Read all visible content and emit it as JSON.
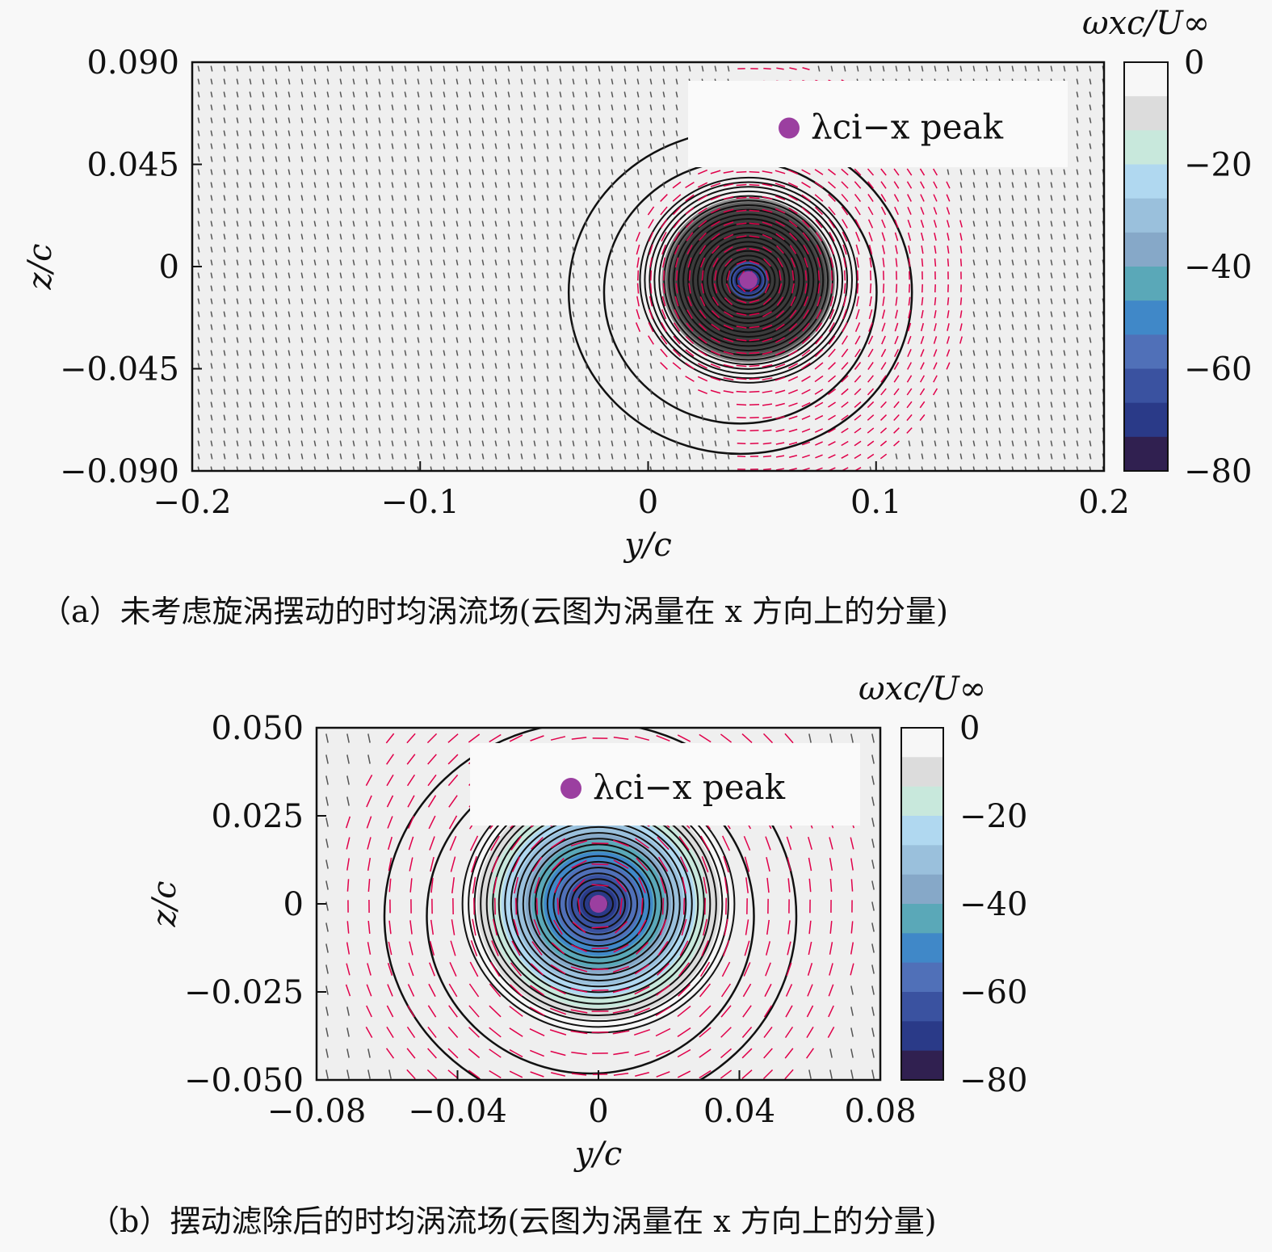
{
  "chart_data": [
    {
      "type": "heatmap",
      "subtype": "contour+quiver",
      "caption": "（a）未考虑旋涡摆动的时均涡流场(云图为涡量在 x 方向上的分量)",
      "xlabel": "y/c",
      "ylabel": "z/c",
      "xlim": [
        -0.2,
        0.2
      ],
      "ylim": [
        -0.09,
        0.09
      ],
      "xticks": [
        -0.2,
        -0.1,
        0,
        0.1,
        0.2
      ],
      "xtick_labels": [
        "−0.2",
        "−0.1",
        "0",
        "0.1",
        "0.2"
      ],
      "yticks": [
        0.09,
        0.045,
        0,
        -0.045,
        -0.09
      ],
      "ytick_labels": [
        "0.090",
        "0.045",
        "0",
        "−0.045",
        "−0.090"
      ],
      "colorbar": {
        "label": "ωxc/U∞",
        "range": [
          -80,
          0
        ],
        "ticks": [
          0,
          -20,
          -40,
          -60,
          -80
        ],
        "tick_labels": [
          "0",
          "−20",
          "−40",
          "−60",
          "−80"
        ]
      },
      "peak": {
        "y": 0.044,
        "z": -0.006,
        "min_value": -80
      },
      "legend": {
        "entry": "λci−x peak",
        "color": "#9b3fa0",
        "placement": "top-right"
      }
    },
    {
      "type": "heatmap",
      "subtype": "contour+quiver",
      "caption": "（b）摆动滤除后的时均涡流场(云图为涡量在 x 方向上的分量)",
      "xlabel": "y/c",
      "ylabel": "z/c",
      "xlim": [
        -0.08,
        0.08
      ],
      "ylim": [
        -0.05,
        0.05
      ],
      "xticks": [
        -0.08,
        -0.04,
        0,
        0.04,
        0.08
      ],
      "xtick_labels": [
        "−0.08",
        "−0.04",
        "0",
        "0.04",
        "0.08"
      ],
      "yticks": [
        0.05,
        0.025,
        0,
        -0.025,
        -0.05
      ],
      "ytick_labels": [
        "0.050",
        "0.025",
        "0",
        "−0.025",
        "−0.050"
      ],
      "colorbar": {
        "label": "ωxc/U∞",
        "range": [
          -80,
          0
        ],
        "ticks": [
          0,
          -20,
          -40,
          -60,
          -80
        ],
        "tick_labels": [
          "0",
          "−20",
          "−40",
          "−60",
          "−80"
        ]
      },
      "peak": {
        "y": 0,
        "z": 0,
        "min_value": -80
      },
      "legend": {
        "entry": "λci−x peak",
        "color": "#9b3fa0",
        "placement": "top-right"
      }
    }
  ],
  "colormap": [
    "#f7f7f7",
    "#dcdcdc",
    "#c8e8dc",
    "#b0d8f0",
    "#9ac0dc",
    "#86a8c8",
    "#5aa8b8",
    "#4088c8",
    "#5070b8",
    "#3a52a0",
    "#2a3a88",
    "#302050"
  ],
  "arrow_colors": {
    "near": "#e0004a",
    "far": "#555555"
  }
}
